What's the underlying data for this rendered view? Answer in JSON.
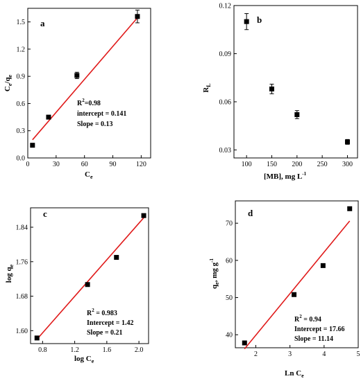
{
  "chart_data": [
    {
      "panel": "a",
      "type": "scatter",
      "xlabel": "C_e",
      "ylabel": "C_e/q_e",
      "xlim": [
        0,
        130
      ],
      "ylim": [
        0,
        1.65
      ],
      "xticks": [
        0,
        30,
        60,
        90,
        120
      ],
      "yticks": [
        0.0,
        0.3,
        0.6,
        0.9,
        1.2,
        1.5
      ],
      "x": [
        5,
        22,
        52,
        116
      ],
      "y": [
        0.14,
        0.45,
        0.91,
        1.56
      ],
      "yerr": [
        0,
        0,
        0.035,
        0.07
      ],
      "fit_line": {
        "x": [
          5,
          118
        ],
        "y": [
          0.2,
          1.57
        ],
        "color": "#e01a1a"
      },
      "annotations": {
        "r2_base": "R",
        "r2_sup": "2",
        "r2_value": "=0.98",
        "intercept": "intercept = 0.141",
        "slope": "Slope = 0.13"
      }
    },
    {
      "panel": "b",
      "type": "scatter",
      "xlabel": "[MB], mg L^-1",
      "ylabel": "R_L",
      "xlim": [
        75,
        320
      ],
      "ylim": [
        0.025,
        0.12
      ],
      "xticks": [
        100,
        150,
        200,
        250,
        300
      ],
      "yticks": [
        0.03,
        0.06,
        0.09,
        0.12
      ],
      "x": [
        100,
        150,
        200,
        300
      ],
      "y": [
        0.11,
        0.068,
        0.052,
        0.035
      ],
      "yerr": [
        0.005,
        0.003,
        0.0025,
        0.0015
      ]
    },
    {
      "panel": "c",
      "type": "scatter",
      "xlabel": "log C_e",
      "ylabel": "log q_e",
      "xlim": [
        0.65,
        2.12
      ],
      "ylim": [
        1.57,
        1.885
      ],
      "xticks": [
        0.8,
        1.2,
        1.6,
        2.0
      ],
      "yticks": [
        1.6,
        1.68,
        1.76,
        1.84
      ],
      "x": [
        0.73,
        1.36,
        1.72,
        2.06
      ],
      "y": [
        1.583,
        1.707,
        1.77,
        1.867
      ],
      "fit_line": {
        "x": [
          0.73,
          2.06
        ],
        "y": [
          1.58,
          1.862
        ],
        "color": "#e01a1a"
      },
      "annotations": {
        "r2_base": "R",
        "r2_sup": "2",
        "r2_value": " = 0.983",
        "intercept": "Intercept = 1.42",
        "slope": "Slope = 0.21"
      }
    },
    {
      "panel": "d",
      "type": "scatter",
      "xlabel": "Ln C_e",
      "ylabel": "q_e, mg g^-1",
      "xlim": [
        1.4,
        5.0
      ],
      "ylim": [
        36.5,
        76
      ],
      "xticks": [
        2,
        3,
        4,
        5
      ],
      "yticks": [
        40,
        50,
        60,
        70
      ],
      "x": [
        1.67,
        3.12,
        3.97,
        4.75
      ],
      "y": [
        37.8,
        50.8,
        58.6,
        73.9
      ],
      "fit_line": {
        "x": [
          1.67,
          4.75
        ],
        "y": [
          36.2,
          70.6
        ],
        "color": "#e01a1a"
      },
      "annotations": {
        "r2_base": "R",
        "r2_sup": "2",
        "r2_value": " = 0.94",
        "intercept": "Intercept = 17.66",
        "slope": "Slope = 11.14"
      }
    }
  ],
  "text": {
    "a": {
      "panel_label": "a",
      "xtitle_base": "C",
      "xtitle_sub": "e",
      "ytitle_1": "C",
      "ytitle_1_sub": "e",
      "ytitle_2": "/q",
      "ytitle_2_sub": "e",
      "xticks": [
        "0",
        "30",
        "60",
        "90",
        "120"
      ],
      "yticks": [
        "0.0",
        "0.3",
        "0.6",
        "0.9",
        "1.2",
        "1.5"
      ]
    },
    "b": {
      "panel_label": "b",
      "xtitle": "[MB], mg L",
      "xtitle_sup": "-1",
      "ytitle_base": "R",
      "ytitle_sub": "L",
      "xticks": [
        "100",
        "150",
        "200",
        "250",
        "300"
      ],
      "yticks": [
        "0.03",
        "0.06",
        "0.09",
        "0.12"
      ]
    },
    "c": {
      "panel_label": "c",
      "xtitle_base": "log C",
      "xtitle_sub": "e",
      "ytitle_base": "log q",
      "ytitle_sub": "e",
      "xticks": [
        "0.8",
        "1.2",
        "1.6",
        "2.0"
      ],
      "yticks": [
        "1.60",
        "1.68",
        "1.76",
        "1.84"
      ]
    },
    "d": {
      "panel_label": "d",
      "xtitle_base": "Ln C",
      "xtitle_sub": "e",
      "ytitle_base": "q",
      "ytitle_sub": "e",
      "ytitle_rest": ", mg g",
      "ytitle_sup": "-1",
      "xticks": [
        "2",
        "3",
        "4",
        "5"
      ],
      "yticks": [
        "40",
        "50",
        "60",
        "70"
      ]
    }
  }
}
